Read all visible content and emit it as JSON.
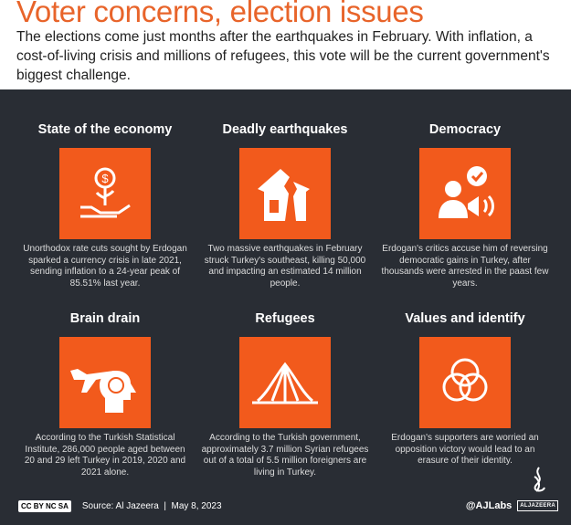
{
  "header": {
    "title": "Voter concerns, election issues",
    "subtitle": "The elections come just months after the earthquakes in February. With inflation, a cost-of-living crisis and millions of refugees, this vote will be the current government's biggest challenge."
  },
  "cards": [
    {
      "title": "State of the economy",
      "icon": "money-plant-hand-icon",
      "text": "Unorthodox rate cuts sought by Erdogan sparked a currency crisis in late 2021, sending inflation to a 24-year peak of 85.51% last year."
    },
    {
      "title": "Deadly earthquakes",
      "icon": "cracked-house-icon",
      "text": "Two massive earthquakes in February struck Turkey's southeast, killing 50,000 and impacting an estimated 14 million people."
    },
    {
      "title": "Democracy",
      "icon": "person-megaphone-icon",
      "text": "Erdogan's critics accuse him of reversing democratic gains in Turkey, after thousands were arrested in the paast few years."
    },
    {
      "title": "Brain drain",
      "icon": "plane-brain-icon",
      "text": "According to the Turkish Statistical Institute, 286,000 people aged between 20 and 29 left Turkey in 2019, 2020 and 2021 alone."
    },
    {
      "title": "Refugees",
      "icon": "tent-icon",
      "text": "According to the Turkish government, approximately 3.7 million Syrian refugees out of a total of 5.5 million foreigners are living in Turkey."
    },
    {
      "title": "Values and identify",
      "icon": "venn-circles-icon",
      "text": "Erdogan's supporters are worried an opposition victory would lead to an erasure of their identity."
    }
  ],
  "footer": {
    "license": "CC BY NC SA",
    "source": "Source: Al Jazeera  |  May 8, 2023",
    "handle": "@AJLabs",
    "brand": "ALJAZEERA"
  },
  "colors": {
    "accent": "#f25a1c",
    "panel": "#292d34",
    "title": "#e8642a"
  }
}
